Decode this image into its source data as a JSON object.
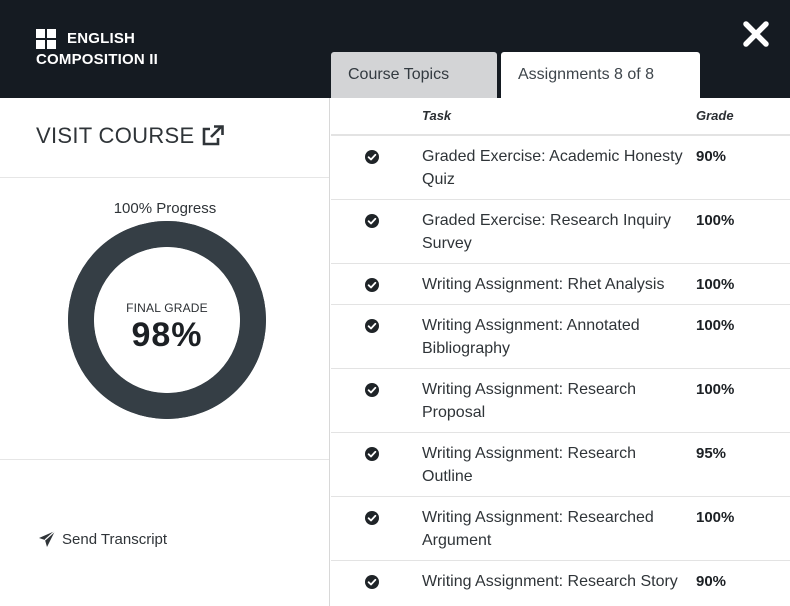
{
  "header": {
    "course_title_line1": "ENGLISH",
    "course_title_line2": "COMPOSITION II",
    "close_label": "close"
  },
  "tabs": [
    {
      "label": "Course Topics",
      "active": false
    },
    {
      "label": "Assignments 8 of 8",
      "active": true
    }
  ],
  "left_panel": {
    "visit_course_label": "VISIT COURSE",
    "progress_label": "100% Progress",
    "progress_fraction": 1.0,
    "final_grade_label": "FINAL GRADE",
    "final_grade_value": "98%",
    "send_transcript_label": "Send Transcript"
  },
  "table": {
    "columns": {
      "task": "Task",
      "grade": "Grade"
    },
    "rows": [
      {
        "task": "Graded Exercise: Academic Honesty Quiz",
        "grade": "90%",
        "status_icon": "check-circle-icon"
      },
      {
        "task": "Graded Exercise: Research Inquiry Survey",
        "grade": "100%",
        "status_icon": "check-circle-icon"
      },
      {
        "task": "Writing Assignment: Rhet Analysis",
        "grade": "100%",
        "status_icon": "check-circle-icon"
      },
      {
        "task": "Writing Assignment: Annotated Bibliography",
        "grade": "100%",
        "status_icon": "check-circle-icon"
      },
      {
        "task": "Writing Assignment: Research Proposal",
        "grade": "100%",
        "status_icon": "check-circle-icon"
      },
      {
        "task": "Writing Assignment: Research Outline",
        "grade": "95%",
        "status_icon": "check-circle-icon"
      },
      {
        "task": "Writing Assignment: Researched Argument",
        "grade": "100%",
        "status_icon": "check-circle-icon"
      },
      {
        "task": "Writing Assignment: Research Story",
        "grade": "90%",
        "status_icon": "check-circle-icon"
      }
    ]
  },
  "colors": {
    "header_bg": "#151b22",
    "donut_ring": "#353e45",
    "inactive_tab": "#d3d4d6"
  }
}
